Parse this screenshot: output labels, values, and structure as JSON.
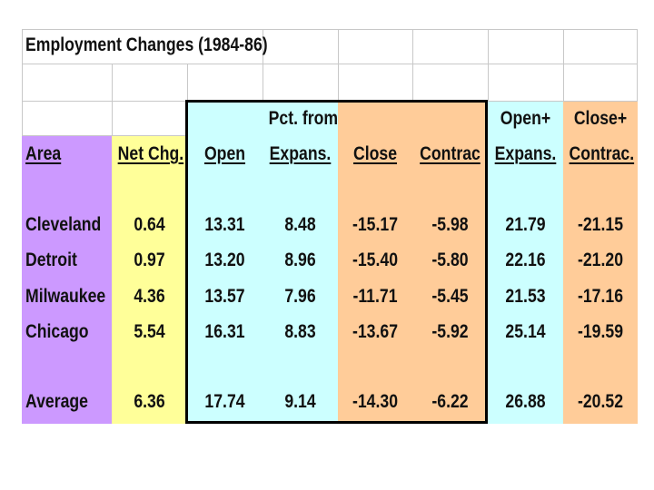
{
  "title": "Employment Changes (1984-86)",
  "colors": {
    "area": "#cc99ff",
    "net": "#ffff99",
    "cyan": "#ccffff",
    "orange": "#ffcc99",
    "grid": "#c8c8c8"
  },
  "headers": {
    "area": "Area",
    "net_chg": "Net Chg.",
    "open": "Open",
    "pct_from": "Pct. from",
    "expans": "Expans.",
    "close": "Close",
    "contrac": "Contrac",
    "open_plus": "Open+",
    "open_plus_expans": "Expans.",
    "close_plus": "Close+",
    "close_plus_contrac": "Contrac."
  },
  "rows": [
    {
      "area": "Cleveland",
      "net_chg": "0.64",
      "open": "13.31",
      "expans": "8.48",
      "close": "-15.17",
      "contrac": "-5.98",
      "open_expans": "21.79",
      "close_contrac": "-21.15"
    },
    {
      "area": "Detroit",
      "net_chg": "0.97",
      "open": "13.20",
      "expans": "8.96",
      "close": "-15.40",
      "contrac": "-5.80",
      "open_expans": "22.16",
      "close_contrac": "-21.20"
    },
    {
      "area": "Milwaukee",
      "net_chg": "4.36",
      "open": "13.57",
      "expans": "7.96",
      "close": "-11.71",
      "contrac": "-5.45",
      "open_expans": "21.53",
      "close_contrac": "-17.16"
    },
    {
      "area": "Chicago",
      "net_chg": "5.54",
      "open": "16.31",
      "expans": "8.83",
      "close": "-13.67",
      "contrac": "-5.92",
      "open_expans": "25.14",
      "close_contrac": "-19.59"
    }
  ],
  "average": {
    "area": "Average",
    "net_chg": "6.36",
    "open": "17.74",
    "expans": "9.14",
    "close": "-14.30",
    "contrac": "-6.22",
    "open_expans": "26.88",
    "close_contrac": "-20.52"
  }
}
